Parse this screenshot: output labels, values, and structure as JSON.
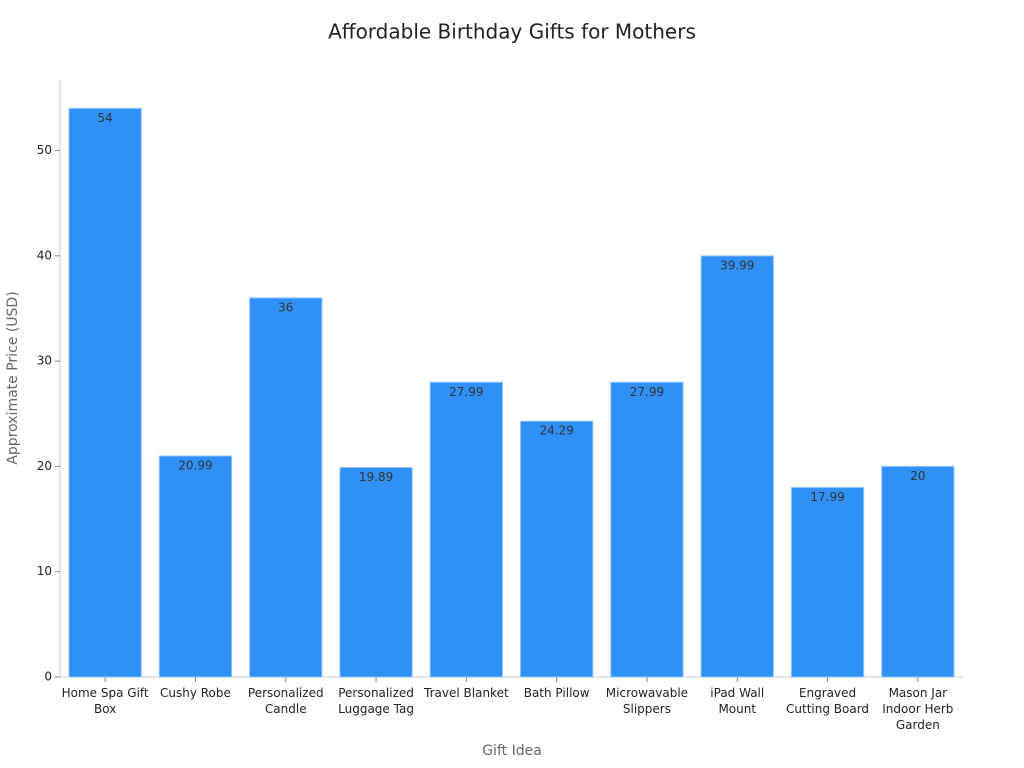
{
  "chart_data": {
    "type": "bar",
    "title": "Affordable Birthday Gifts for Mothers",
    "x_label": "Gift Idea",
    "y_label": "Approximate Price (USD)",
    "categories": [
      "Home Spa Gift Box",
      "Cushy Robe",
      "Personalized Candle",
      "Personalized Luggage Tag",
      "Travel Blanket",
      "Bath Pillow",
      "Microwavable Slippers",
      "iPad Wall Mount",
      "Engraved Cutting Board",
      "Mason Jar Indoor Herb Garden"
    ],
    "values": [
      54,
      20.99,
      36,
      19.89,
      27.99,
      24.29,
      27.99,
      39.99,
      17.99,
      20
    ],
    "color": "#2f91f8",
    "ylim": [
      0,
      56.7
    ],
    "yticks": [
      0,
      10,
      20,
      30,
      40,
      50
    ],
    "grid": false
  }
}
